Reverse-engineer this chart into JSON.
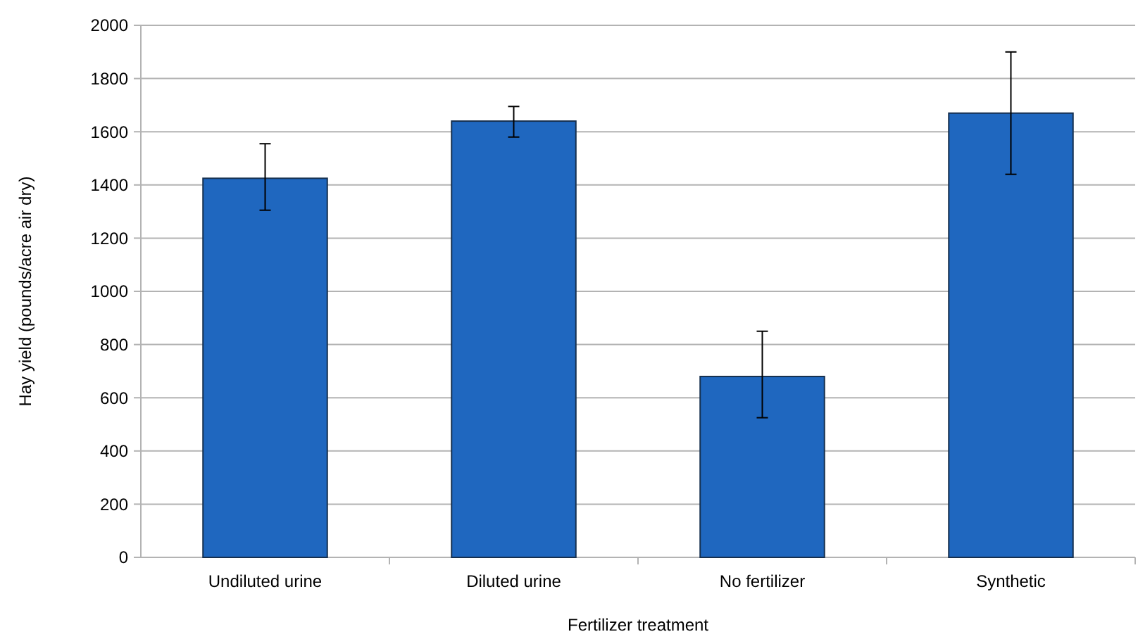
{
  "chart_data": {
    "type": "bar",
    "xlabel": "Fertilizer treatment",
    "ylabel": "Hay yield (pounds/acre air dry)",
    "categories": [
      "Undiluted urine",
      "Diluted urine",
      "No fertilizer",
      "Synthetic"
    ],
    "values": [
      1425,
      1640,
      680,
      1670
    ],
    "errors": [
      [
        1305,
        1555
      ],
      [
        1580,
        1695
      ],
      [
        525,
        850
      ],
      [
        1440,
        1900
      ]
    ],
    "color": "#1f67bf",
    "ylim": [
      0,
      2000
    ],
    "yticks": [
      0,
      200,
      400,
      600,
      800,
      1000,
      1200,
      1400,
      1600,
      1800,
      2000
    ],
    "grid": "y"
  }
}
